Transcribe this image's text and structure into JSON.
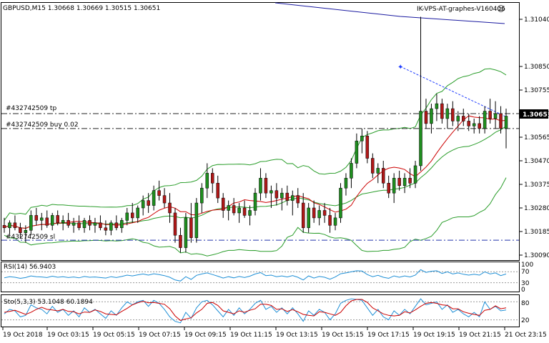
{
  "header": {
    "symbol_info": "GBPUSD,M15  1.30668 1.30669 1.30515 1.30651",
    "server": "IK-VPS-AT-graphes-V160406",
    "smiley": "☺"
  },
  "order_lines": {
    "tp_label": "#432742509 tp",
    "buy_label": "#432742509 buy 0.02",
    "sl_label": "#432742509 sl",
    "current_price": "1.30651"
  },
  "indicators": {
    "rsi_label": "RSI(14) 56.9403",
    "rsi_levels": [
      "70",
      "30",
      "0"
    ],
    "rsi_top": "100",
    "sto_label": "Sto(5,3,3) 53.1048 60.1894",
    "sto_levels": [
      "80",
      "20"
    ]
  },
  "colors": {
    "bull": "#1f8f1f",
    "bear": "#b01818",
    "ma_red": "#cc0000",
    "band_green": "#2a9d2a",
    "long_ma_blue": "#1a1aa0",
    "rsi_blue": "#1e8fd6",
    "level_line": "#2233aa",
    "trend_blue": "#1e3cff"
  },
  "chart_data": {
    "type": "candlestick",
    "symbol": "GBPUSD",
    "timeframe": "M15",
    "y_ticks": [
      "1.31040",
      "1.30850",
      "1.30755",
      "1.30660",
      "1.30565",
      "1.30470",
      "1.30375",
      "1.30280",
      "1.30185",
      "1.30090"
    ],
    "x_ticks": [
      "19 Oct 2018",
      "19 Oct 03:15",
      "19 Oct 05:15",
      "19 Oct 07:15",
      "19 Oct 09:15",
      "19 Oct 11:15",
      "19 Oct 13:15",
      "19 Oct 15:15",
      "19 Oct 17:15",
      "19 Oct 19:15",
      "19 Oct 21:15",
      "21 Oct 23:15"
    ],
    "ylim": [
      1.3005,
      1.3112
    ],
    "levels": {
      "tp": 1.3066,
      "buy": 1.306,
      "sl": 1.3015
    },
    "candles": [
      [
        1.3021,
        1.3024,
        1.3018,
        1.302
      ],
      [
        1.302,
        1.3023,
        1.3017,
        1.3022
      ],
      [
        1.3022,
        1.3025,
        1.3019,
        1.302
      ],
      [
        1.302,
        1.3022,
        1.3016,
        1.3018
      ],
      [
        1.3018,
        1.3021,
        1.3014,
        1.3019
      ],
      [
        1.3019,
        1.3027,
        1.3017,
        1.3025
      ],
      [
        1.3025,
        1.3028,
        1.3021,
        1.3023
      ],
      [
        1.3023,
        1.3026,
        1.3019,
        1.3024
      ],
      [
        1.3024,
        1.3027,
        1.302,
        1.3021
      ],
      [
        1.3021,
        1.3026,
        1.3019,
        1.3025
      ],
      [
        1.3025,
        1.3027,
        1.3021,
        1.3022
      ],
      [
        1.3022,
        1.3025,
        1.3019,
        1.3023
      ],
      [
        1.3023,
        1.3026,
        1.302,
        1.3021
      ],
      [
        1.3021,
        1.3024,
        1.3018,
        1.3022
      ],
      [
        1.3022,
        1.3025,
        1.3019,
        1.302
      ],
      [
        1.302,
        1.3024,
        1.3018,
        1.3023
      ],
      [
        1.3023,
        1.3025,
        1.3019,
        1.3021
      ],
      [
        1.3021,
        1.3024,
        1.3018,
        1.3022
      ],
      [
        1.3022,
        1.3025,
        1.3019,
        1.302
      ],
      [
        1.302,
        1.3023,
        1.3017,
        1.3019
      ],
      [
        1.3019,
        1.3023,
        1.3017,
        1.3022
      ],
      [
        1.3022,
        1.3025,
        1.3019,
        1.302
      ],
      [
        1.302,
        1.3024,
        1.3018,
        1.3023
      ],
      [
        1.3023,
        1.3028,
        1.3021,
        1.3026
      ],
      [
        1.3026,
        1.303,
        1.3022,
        1.3024
      ],
      [
        1.3024,
        1.3029,
        1.3022,
        1.3028
      ],
      [
        1.3028,
        1.3033,
        1.3025,
        1.3031
      ],
      [
        1.3031,
        1.3034,
        1.3026,
        1.3029
      ],
      [
        1.3029,
        1.3037,
        1.3027,
        1.3035
      ],
      [
        1.3035,
        1.3039,
        1.3031,
        1.3033
      ],
      [
        1.3033,
        1.3036,
        1.3028,
        1.303
      ],
      [
        1.303,
        1.3034,
        1.3022,
        1.3026
      ],
      [
        1.3026,
        1.3028,
        1.3014,
        1.3017
      ],
      [
        1.3017,
        1.302,
        1.301,
        1.3012
      ],
      [
        1.3012,
        1.3026,
        1.301,
        1.3024
      ],
      [
        1.3024,
        1.303,
        1.3014,
        1.3016
      ],
      [
        1.3016,
        1.3032,
        1.3014,
        1.303
      ],
      [
        1.303,
        1.3038,
        1.3026,
        1.3036
      ],
      [
        1.3036,
        1.3046,
        1.3032,
        1.3042
      ],
      [
        1.3042,
        1.3044,
        1.3034,
        1.3038
      ],
      [
        1.3038,
        1.3041,
        1.303,
        1.3032
      ],
      [
        1.3032,
        1.3034,
        1.3024,
        1.3027
      ],
      [
        1.3027,
        1.3031,
        1.3023,
        1.3029
      ],
      [
        1.3029,
        1.3032,
        1.3025,
        1.3026
      ],
      [
        1.3026,
        1.303,
        1.3022,
        1.3028
      ],
      [
        1.3028,
        1.3031,
        1.3024,
        1.3025
      ],
      [
        1.3025,
        1.3029,
        1.3021,
        1.3027
      ],
      [
        1.3027,
        1.3036,
        1.3025,
        1.3034
      ],
      [
        1.3034,
        1.3044,
        1.3031,
        1.304
      ],
      [
        1.304,
        1.3042,
        1.3032,
        1.3034
      ],
      [
        1.3034,
        1.3037,
        1.3028,
        1.3035
      ],
      [
        1.3035,
        1.3038,
        1.3029,
        1.3032
      ],
      [
        1.3032,
        1.3036,
        1.3027,
        1.3034
      ],
      [
        1.3034,
        1.3037,
        1.3029,
        1.3031
      ],
      [
        1.3031,
        1.3035,
        1.3025,
        1.3033
      ],
      [
        1.3033,
        1.3036,
        1.3028,
        1.303
      ],
      [
        1.303,
        1.3034,
        1.3018,
        1.302
      ],
      [
        1.302,
        1.303,
        1.3018,
        1.3028
      ],
      [
        1.3028,
        1.3031,
        1.3022,
        1.3024
      ],
      [
        1.3024,
        1.3029,
        1.3021,
        1.3027
      ],
      [
        1.3027,
        1.303,
        1.3022,
        1.3025
      ],
      [
        1.3025,
        1.3028,
        1.3018,
        1.3021
      ],
      [
        1.3021,
        1.3026,
        1.3019,
        1.3024
      ],
      [
        1.3024,
        1.3038,
        1.3022,
        1.3036
      ],
      [
        1.3036,
        1.3042,
        1.3033,
        1.304
      ],
      [
        1.304,
        1.3048,
        1.3036,
        1.3046
      ],
      [
        1.3046,
        1.3058,
        1.3044,
        1.3055
      ],
      [
        1.3055,
        1.306,
        1.305,
        1.3057
      ],
      [
        1.3057,
        1.3059,
        1.3046,
        1.3048
      ],
      [
        1.3048,
        1.305,
        1.304,
        1.3042
      ],
      [
        1.3042,
        1.3046,
        1.3038,
        1.3044
      ],
      [
        1.3044,
        1.3047,
        1.3036,
        1.3038
      ],
      [
        1.3038,
        1.3041,
        1.3032,
        1.3034
      ],
      [
        1.3034,
        1.3042,
        1.303,
        1.304
      ],
      [
        1.304,
        1.3043,
        1.3035,
        1.3037
      ],
      [
        1.3037,
        1.3042,
        1.3034,
        1.304
      ],
      [
        1.304,
        1.3044,
        1.3036,
        1.3038
      ],
      [
        1.3038,
        1.3047,
        1.3036,
        1.3045
      ],
      [
        1.3045,
        1.3105,
        1.3043,
        1.3067
      ],
      [
        1.3067,
        1.3072,
        1.306,
        1.3062
      ],
      [
        1.3062,
        1.307,
        1.3058,
        1.3068
      ],
      [
        1.3068,
        1.3074,
        1.3063,
        1.307
      ],
      [
        1.307,
        1.3072,
        1.3062,
        1.3064
      ],
      [
        1.3064,
        1.307,
        1.306,
        1.3068
      ],
      [
        1.3068,
        1.3071,
        1.3061,
        1.3063
      ],
      [
        1.3063,
        1.3067,
        1.3059,
        1.3065
      ],
      [
        1.3065,
        1.3068,
        1.3061,
        1.3063
      ],
      [
        1.3063,
        1.3066,
        1.3059,
        1.3061
      ],
      [
        1.3061,
        1.3064,
        1.3058,
        1.3062
      ],
      [
        1.3062,
        1.3065,
        1.3058,
        1.306
      ],
      [
        1.306,
        1.3069,
        1.3058,
        1.3067
      ],
      [
        1.3067,
        1.3072,
        1.3062,
        1.3064
      ],
      [
        1.3064,
        1.3071,
        1.306,
        1.3066
      ],
      [
        1.3066,
        1.3069,
        1.3058,
        1.306
      ],
      [
        1.306,
        1.3068,
        1.3052,
        1.3065
      ]
    ],
    "rsi_series": [
      48,
      52,
      50,
      46,
      49,
      55,
      52,
      51,
      49,
      54,
      50,
      52,
      49,
      51,
      48,
      53,
      50,
      51,
      49,
      47,
      52,
      49,
      53,
      58,
      55,
      59,
      62,
      58,
      63,
      60,
      56,
      50,
      40,
      36,
      52,
      42,
      57,
      62,
      66,
      60,
      54,
      47,
      52,
      48,
      53,
      49,
      54,
      62,
      67,
      56,
      58,
      52,
      55,
      51,
      56,
      50,
      40,
      55,
      47,
      53,
      50,
      43,
      51,
      63,
      66,
      70,
      74,
      73,
      60,
      52,
      57,
      50,
      46,
      55,
      50,
      55,
      51,
      58,
      78,
      68,
      72,
      74,
      64,
      70,
      62,
      66,
      61,
      58,
      61,
      58,
      70,
      62,
      66,
      56,
      62
    ],
    "sto_main": [
      40,
      55,
      50,
      30,
      35,
      70,
      60,
      55,
      40,
      65,
      45,
      55,
      35,
      50,
      30,
      60,
      45,
      55,
      40,
      25,
      50,
      35,
      60,
      80,
      70,
      80,
      85,
      65,
      85,
      75,
      55,
      30,
      15,
      10,
      45,
      25,
      60,
      80,
      85,
      70,
      50,
      30,
      55,
      35,
      60,
      40,
      55,
      75,
      85,
      55,
      65,
      45,
      60,
      40,
      60,
      40,
      15,
      50,
      35,
      55,
      45,
      20,
      40,
      75,
      85,
      90,
      88,
      85,
      60,
      35,
      55,
      30,
      20,
      50,
      35,
      55,
      40,
      65,
      90,
      70,
      75,
      80,
      55,
      70,
      45,
      55,
      40,
      30,
      45,
      30,
      80,
      55,
      65,
      50,
      53
    ],
    "sto_signal": [
      45,
      48,
      52,
      45,
      38,
      45,
      55,
      62,
      55,
      53,
      50,
      55,
      48,
      47,
      40,
      46,
      45,
      53,
      48,
      40,
      38,
      37,
      48,
      58,
      70,
      77,
      82,
      77,
      78,
      75,
      72,
      57,
      33,
      18,
      23,
      27,
      43,
      55,
      75,
      78,
      68,
      50,
      45,
      40,
      50,
      45,
      52,
      57,
      72,
      72,
      68,
      55,
      57,
      48,
      54,
      47,
      38,
      35,
      33,
      47,
      45,
      40,
      35,
      45,
      67,
      83,
      88,
      88,
      78,
      60,
      50,
      40,
      35,
      33,
      35,
      47,
      43,
      53,
      65,
      75,
      78,
      75,
      70,
      68,
      57,
      57,
      47,
      42,
      38,
      35,
      52,
      55,
      67,
      57,
      60
    ]
  }
}
